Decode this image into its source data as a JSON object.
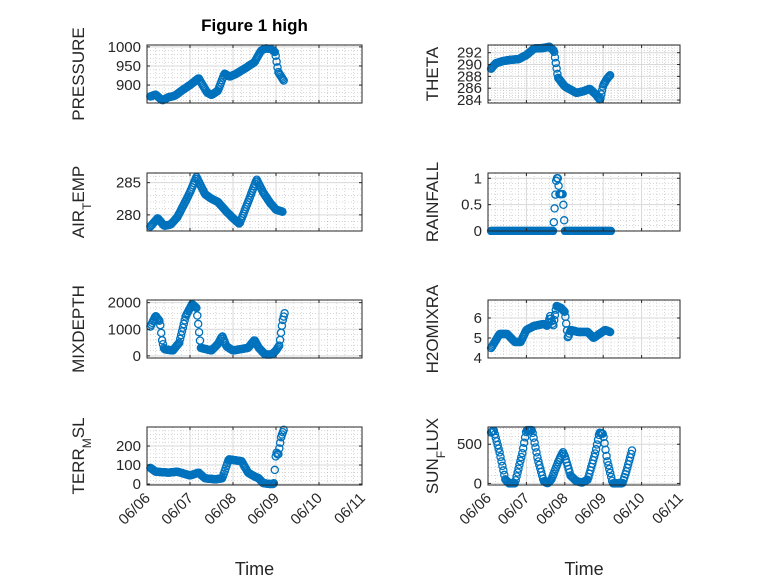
{
  "figure": {
    "title": "Figure 1 high"
  },
  "chart_data": [
    {
      "id": "pressure",
      "type": "scatter",
      "ylabel": "PRESSURE",
      "title": "Figure 1 high",
      "xlabel": "",
      "xlim": [
        0,
        5
      ],
      "ylim": [
        853,
        1005
      ],
      "xticks": [
        0,
        1,
        2,
        3,
        4,
        5
      ],
      "xticklabels": [
        "06/06",
        "06/07",
        "06/08",
        "06/09",
        "06/10",
        "06/11"
      ],
      "yticks": [
        900,
        950,
        1000
      ],
      "grid": true,
      "keypoints": [
        [
          0.08,
          870
        ],
        [
          0.2,
          875
        ],
        [
          0.3,
          865
        ],
        [
          0.36,
          860
        ],
        [
          0.5,
          868
        ],
        [
          0.65,
          872
        ],
        [
          0.8,
          885
        ],
        [
          1.0,
          900
        ],
        [
          1.2,
          918
        ],
        [
          1.4,
          880
        ],
        [
          1.5,
          874
        ],
        [
          1.65,
          885
        ],
        [
          1.8,
          930
        ],
        [
          1.92,
          922
        ],
        [
          2.05,
          928
        ],
        [
          2.3,
          945
        ],
        [
          2.5,
          960
        ],
        [
          2.65,
          990
        ],
        [
          2.75,
          996
        ],
        [
          2.88,
          995
        ],
        [
          2.98,
          986
        ],
        [
          3.05,
          935
        ],
        [
          3.12,
          922
        ],
        [
          3.18,
          912
        ]
      ],
      "n_points": 150
    },
    {
      "id": "theta",
      "type": "scatter",
      "ylabel": "THETA",
      "xlabel": "",
      "xlim": [
        0,
        5
      ],
      "ylim": [
        283.5,
        293.3
      ],
      "xticks": [
        0,
        1,
        2,
        3,
        4,
        5
      ],
      "xticklabels": [
        "06/06",
        "06/07",
        "06/08",
        "06/09",
        "06/10",
        "06/11"
      ],
      "yticks": [
        284,
        286,
        288,
        290,
        292
      ],
      "grid": true,
      "keypoints": [
        [
          0.08,
          289.3
        ],
        [
          0.2,
          290.2
        ],
        [
          0.4,
          290.6
        ],
        [
          0.6,
          290.8
        ],
        [
          0.8,
          290.9
        ],
        [
          1.0,
          291.6
        ],
        [
          1.2,
          292.7
        ],
        [
          1.45,
          292.8
        ],
        [
          1.6,
          293.0
        ],
        [
          1.72,
          292.3
        ],
        [
          1.82,
          287.8
        ],
        [
          2.0,
          286.3
        ],
        [
          2.3,
          285.2
        ],
        [
          2.5,
          285.5
        ],
        [
          2.65,
          285.9
        ],
        [
          2.8,
          285.0
        ],
        [
          2.92,
          284.0
        ],
        [
          3.0,
          286.5
        ],
        [
          3.1,
          287.6
        ],
        [
          3.18,
          288.2
        ]
      ],
      "n_points": 150
    },
    {
      "id": "airtemp",
      "type": "scatter",
      "ylabel": "AIR_TEMP",
      "xlabel": "",
      "xlim": [
        0,
        5
      ],
      "ylim": [
        277.5,
        286.5
      ],
      "xticks": [
        0,
        1,
        2,
        3,
        4,
        5
      ],
      "xticklabels": [
        "06/06",
        "06/07",
        "06/08",
        "06/09",
        "06/10",
        "06/11"
      ],
      "yticks": [
        280,
        285
      ],
      "grid": true,
      "keypoints": [
        [
          0.08,
          278.2
        ],
        [
          0.25,
          279.5
        ],
        [
          0.4,
          278.3
        ],
        [
          0.55,
          278.5
        ],
        [
          0.7,
          279.6
        ],
        [
          0.85,
          281.5
        ],
        [
          1.0,
          283.5
        ],
        [
          1.15,
          285.9
        ],
        [
          1.35,
          283.2
        ],
        [
          1.5,
          282.5
        ],
        [
          1.65,
          282.0
        ],
        [
          1.85,
          280.5
        ],
        [
          2.0,
          279.5
        ],
        [
          2.15,
          278.6
        ],
        [
          2.35,
          282.0
        ],
        [
          2.55,
          285.5
        ],
        [
          2.7,
          283.5
        ],
        [
          2.85,
          282.0
        ],
        [
          3.0,
          280.8
        ],
        [
          3.15,
          280.5
        ]
      ],
      "n_points": 150
    },
    {
      "id": "rainfall",
      "type": "scatter",
      "ylabel": "RAINFALL",
      "xlabel": "",
      "xlim": [
        0,
        5
      ],
      "ylim": [
        0,
        1.1
      ],
      "xticks": [
        0,
        1,
        2,
        3,
        4,
        5
      ],
      "xticklabels": [
        "06/06",
        "06/07",
        "06/08",
        "06/09",
        "06/10",
        "06/11"
      ],
      "yticks": [
        0,
        0.5,
        1
      ],
      "grid": true,
      "keypoints": [
        [
          0.08,
          0
        ],
        [
          1.7,
          0
        ],
        [
          1.78,
          1.0
        ],
        [
          1.82,
          1.0
        ],
        [
          1.86,
          0.7
        ],
        [
          1.9,
          0.7
        ],
        [
          1.95,
          0.7
        ],
        [
          2.0,
          0
        ],
        [
          3.2,
          0
        ]
      ],
      "n_points": 150
    },
    {
      "id": "mixdepth",
      "type": "scatter",
      "ylabel": "MIXDEPTH",
      "xlabel": "",
      "xlim": [
        0,
        5
      ],
      "ylim": [
        -80,
        2100
      ],
      "xticks": [
        0,
        1,
        2,
        3,
        4,
        5
      ],
      "xticklabels": [
        "06/06",
        "06/07",
        "06/08",
        "06/09",
        "06/10",
        "06/11"
      ],
      "yticks": [
        0,
        1000,
        2000
      ],
      "grid": true,
      "keypoints": [
        [
          0.08,
          1100
        ],
        [
          0.2,
          1500
        ],
        [
          0.3,
          1300
        ],
        [
          0.35,
          600
        ],
        [
          0.4,
          250
        ],
        [
          0.6,
          200
        ],
        [
          0.75,
          500
        ],
        [
          0.9,
          1500
        ],
        [
          1.05,
          1950
        ],
        [
          1.15,
          1800
        ],
        [
          1.25,
          300
        ],
        [
          1.5,
          200
        ],
        [
          1.65,
          450
        ],
        [
          1.75,
          750
        ],
        [
          1.85,
          350
        ],
        [
          2.0,
          200
        ],
        [
          2.35,
          300
        ],
        [
          2.5,
          600
        ],
        [
          2.6,
          300
        ],
        [
          2.75,
          50
        ],
        [
          2.9,
          50
        ],
        [
          3.0,
          200
        ],
        [
          3.08,
          400
        ],
        [
          3.15,
          1300
        ],
        [
          3.2,
          1600
        ]
      ],
      "n_points": 150
    },
    {
      "id": "h2omixra",
      "type": "scatter",
      "ylabel": "H2OMIXRA",
      "xlabel": "",
      "xlim": [
        0,
        5
      ],
      "ylim": [
        4,
        6.9
      ],
      "xticks": [
        0,
        1,
        2,
        3,
        4,
        5
      ],
      "xticklabels": [
        "06/06",
        "06/07",
        "06/08",
        "06/09",
        "06/10",
        "06/11"
      ],
      "yticks": [
        4,
        5,
        6
      ],
      "grid": true,
      "keypoints": [
        [
          0.08,
          4.5
        ],
        [
          0.3,
          5.2
        ],
        [
          0.5,
          5.2
        ],
        [
          0.6,
          5.0
        ],
        [
          0.7,
          4.8
        ],
        [
          0.85,
          4.8
        ],
        [
          1.0,
          5.4
        ],
        [
          1.2,
          5.6
        ],
        [
          1.45,
          5.7
        ],
        [
          1.55,
          5.6
        ],
        [
          1.62,
          6.1
        ],
        [
          1.7,
          5.6
        ],
        [
          1.78,
          6.6
        ],
        [
          1.9,
          6.5
        ],
        [
          2.0,
          6.3
        ],
        [
          2.08,
          5.0
        ],
        [
          2.15,
          5.4
        ],
        [
          2.35,
          5.3
        ],
        [
          2.6,
          5.3
        ],
        [
          2.75,
          5.0
        ],
        [
          2.9,
          5.2
        ],
        [
          3.05,
          5.4
        ],
        [
          3.18,
          5.3
        ]
      ],
      "n_points": 150
    },
    {
      "id": "terrmsl",
      "type": "scatter",
      "ylabel": "TERR_MSL",
      "xlabel": "Time",
      "xlim": [
        0,
        5
      ],
      "ylim": [
        -5,
        300
      ],
      "xticks": [
        0,
        1,
        2,
        3,
        4,
        5
      ],
      "xticklabels": [
        "06/06",
        "06/07",
        "06/08",
        "06/09",
        "06/10",
        "06/11"
      ],
      "yticks": [
        0,
        100,
        200
      ],
      "grid": true,
      "keypoints": [
        [
          0.08,
          85
        ],
        [
          0.2,
          65
        ],
        [
          0.5,
          60
        ],
        [
          0.7,
          65
        ],
        [
          0.85,
          55
        ],
        [
          1.0,
          45
        ],
        [
          1.2,
          60
        ],
        [
          1.35,
          30
        ],
        [
          1.6,
          25
        ],
        [
          1.75,
          30
        ],
        [
          1.9,
          130
        ],
        [
          2.05,
          125
        ],
        [
          2.2,
          120
        ],
        [
          2.35,
          60
        ],
        [
          2.5,
          40
        ],
        [
          2.6,
          30
        ],
        [
          2.7,
          5
        ],
        [
          2.85,
          0
        ],
        [
          2.95,
          0
        ],
        [
          3.0,
          170
        ],
        [
          3.05,
          150
        ],
        [
          3.12,
          250
        ],
        [
          3.18,
          285
        ]
      ],
      "n_points": 150
    },
    {
      "id": "sunflux",
      "type": "scatter",
      "ylabel": "SUN_FLUX",
      "xlabel": "Time",
      "xlim": [
        0,
        5
      ],
      "ylim": [
        -20,
        720
      ],
      "xticks": [
        0,
        1,
        2,
        3,
        4,
        5
      ],
      "xticklabels": [
        "06/06",
        "06/07",
        "06/08",
        "06/09",
        "06/10",
        "06/11"
      ],
      "yticks": [
        0,
        500
      ],
      "grid": true,
      "keypoints": [
        [
          0.08,
          650
        ],
        [
          0.15,
          680
        ],
        [
          0.3,
          400
        ],
        [
          0.45,
          50
        ],
        [
          0.55,
          0
        ],
        [
          0.7,
          0
        ],
        [
          0.9,
          400
        ],
        [
          1.0,
          680
        ],
        [
          1.15,
          680
        ],
        [
          1.3,
          300
        ],
        [
          1.45,
          30
        ],
        [
          1.55,
          0
        ],
        [
          1.65,
          50
        ],
        [
          1.85,
          300
        ],
        [
          1.95,
          400
        ],
        [
          2.0,
          350
        ],
        [
          2.15,
          100
        ],
        [
          2.3,
          30
        ],
        [
          2.45,
          10
        ],
        [
          2.6,
          50
        ],
        [
          2.8,
          400
        ],
        [
          2.9,
          650
        ],
        [
          3.0,
          630
        ],
        [
          3.1,
          300
        ],
        [
          3.2,
          100
        ],
        [
          3.25,
          0
        ],
        [
          3.35,
          0
        ],
        [
          3.5,
          0
        ],
        [
          3.6,
          150
        ],
        [
          3.75,
          420
        ]
      ],
      "n_points": 150
    }
  ]
}
